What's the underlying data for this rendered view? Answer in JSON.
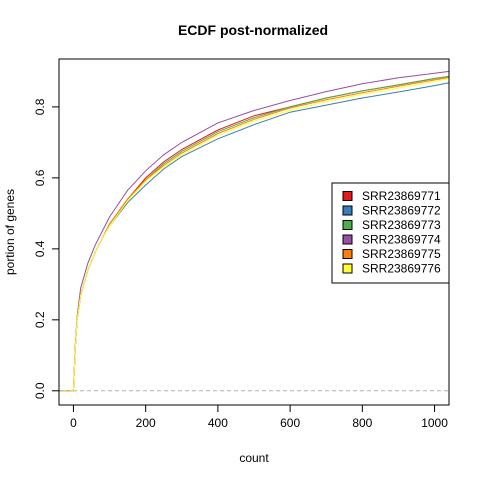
{
  "chart_data": {
    "type": "line",
    "title": "ECDF post-normalized",
    "xlabel": "count",
    "ylabel": "portion of genes",
    "xlim": [
      -40,
      1040
    ],
    "ylim": [
      -0.04,
      0.935
    ],
    "x_ticks": [
      0,
      200,
      400,
      600,
      800,
      1000
    ],
    "y_ticks": [
      0.0,
      0.2,
      0.4,
      0.6,
      0.8
    ],
    "grid": false,
    "reference_line": {
      "y": 0.0,
      "color": "#b0b0b0",
      "style": "dashed"
    },
    "legend": {
      "position": "right"
    },
    "series": [
      {
        "name": "SRR23869771",
        "color": "#e41a1c",
        "x": [
          -40,
          0,
          5,
          10,
          20,
          40,
          60,
          80,
          100,
          150,
          200,
          250,
          300,
          400,
          500,
          600,
          700,
          800,
          900,
          1000,
          1040
        ],
        "y": [
          0,
          0,
          0.12,
          0.2,
          0.27,
          0.34,
          0.39,
          0.43,
          0.47,
          0.54,
          0.6,
          0.645,
          0.68,
          0.735,
          0.775,
          0.8,
          0.825,
          0.845,
          0.862,
          0.88,
          0.886
        ]
      },
      {
        "name": "SRR23869772",
        "color": "#377eb8",
        "x": [
          -40,
          0,
          5,
          10,
          20,
          40,
          60,
          80,
          100,
          150,
          200,
          250,
          300,
          400,
          500,
          600,
          700,
          800,
          900,
          1000,
          1040
        ],
        "y": [
          0,
          0,
          0.12,
          0.2,
          0.27,
          0.34,
          0.39,
          0.43,
          0.465,
          0.53,
          0.58,
          0.625,
          0.66,
          0.71,
          0.75,
          0.785,
          0.805,
          0.825,
          0.842,
          0.86,
          0.868
        ]
      },
      {
        "name": "SRR23869773",
        "color": "#4daf4a",
        "x": [
          -40,
          0,
          5,
          10,
          20,
          40,
          60,
          80,
          100,
          150,
          200,
          250,
          300,
          400,
          500,
          600,
          700,
          800,
          900,
          1000,
          1040
        ],
        "y": [
          0,
          0,
          0.12,
          0.2,
          0.27,
          0.34,
          0.39,
          0.43,
          0.47,
          0.54,
          0.595,
          0.64,
          0.675,
          0.73,
          0.77,
          0.8,
          0.825,
          0.845,
          0.862,
          0.88,
          0.886
        ]
      },
      {
        "name": "SRR23869774",
        "color": "#984ea3",
        "x": [
          -40,
          0,
          5,
          10,
          20,
          40,
          60,
          80,
          100,
          150,
          200,
          250,
          300,
          400,
          500,
          600,
          700,
          800,
          900,
          1000,
          1040
        ],
        "y": [
          0,
          0,
          0.13,
          0.21,
          0.29,
          0.36,
          0.41,
          0.45,
          0.49,
          0.565,
          0.62,
          0.665,
          0.7,
          0.755,
          0.79,
          0.818,
          0.843,
          0.865,
          0.882,
          0.895,
          0.9
        ]
      },
      {
        "name": "SRR23869775",
        "color": "#ff7f00",
        "x": [
          -40,
          0,
          5,
          10,
          20,
          40,
          60,
          80,
          100,
          150,
          200,
          250,
          300,
          400,
          500,
          600,
          700,
          800,
          900,
          1000,
          1040
        ],
        "y": [
          0,
          0,
          0.12,
          0.2,
          0.27,
          0.34,
          0.39,
          0.43,
          0.47,
          0.54,
          0.595,
          0.635,
          0.67,
          0.725,
          0.765,
          0.797,
          0.82,
          0.84,
          0.858,
          0.876,
          0.883
        ]
      },
      {
        "name": "SRR23869776",
        "color": "#ffff33",
        "x": [
          -40,
          0,
          5,
          10,
          20,
          40,
          60,
          80,
          100,
          150,
          200,
          250,
          300,
          400,
          500,
          600,
          700,
          800,
          900,
          1000,
          1040
        ],
        "y": [
          0,
          0,
          0.12,
          0.2,
          0.27,
          0.34,
          0.39,
          0.43,
          0.465,
          0.535,
          0.59,
          0.63,
          0.665,
          0.72,
          0.76,
          0.79,
          0.815,
          0.835,
          0.853,
          0.872,
          0.88
        ]
      }
    ]
  }
}
